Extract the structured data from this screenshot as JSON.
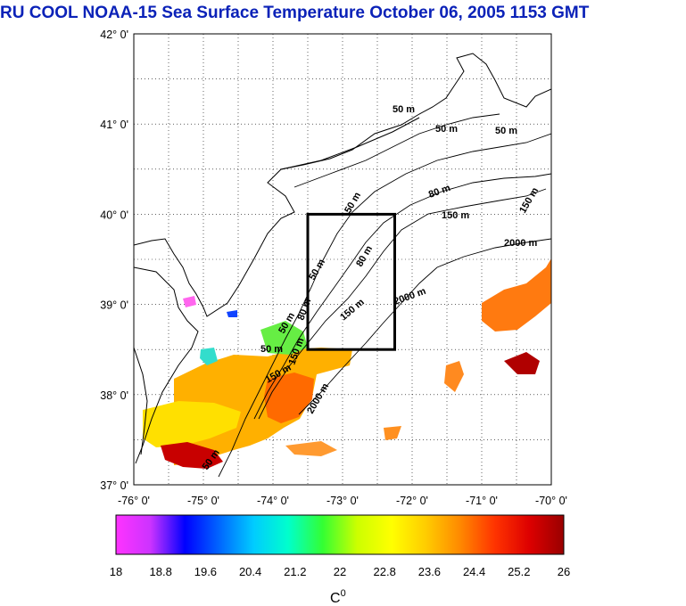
{
  "title": "RU COOL  NOAA-15 Sea Surface Temperature October 06, 2005 1153 GMT",
  "title_color": "#0b22b8",
  "map": {
    "lat_labels": [
      "42° 0'",
      "41° 0'",
      "40° 0'",
      "39° 0'",
      "38° 0'",
      "37° 0'"
    ],
    "lon_labels": [
      "-76° 0'",
      "-75° 0'",
      "-74° 0'",
      "-73° 0'",
      "-72° 0'",
      "-71° 0'",
      "-70° 0'"
    ],
    "lat_range": [
      37,
      42
    ],
    "lon_range": [
      -76,
      -70
    ],
    "grid": "dotted",
    "study_box": {
      "lon": [
        -73.5,
        -72.25
      ],
      "lat": [
        38.5,
        40.0
      ]
    },
    "contour_labels": [
      "50 m",
      "50 m",
      "50 m",
      "50 m",
      "50 m",
      "50 m",
      "50 m",
      "50 m",
      "80 m",
      "80 m",
      "80 m",
      "150 m",
      "150 m",
      "150 m",
      "150 m",
      "150 m",
      "2000 m",
      "2000 m",
      "2000 m"
    ]
  },
  "colorbar": {
    "tick_labels": [
      "18",
      "18.8",
      "19.6",
      "20.4",
      "21.2",
      "22",
      "22.8",
      "23.6",
      "24.4",
      "25.2",
      "26"
    ],
    "range": [
      18,
      26
    ],
    "unit_label": "C",
    "unit_superscript": "0",
    "colors": [
      "#ff33ff",
      "#cc33ff",
      "#0000ff",
      "#0066ff",
      "#00ccff",
      "#00ffcc",
      "#33ff33",
      "#ccff00",
      "#ffff00",
      "#ffcc00",
      "#ff8800",
      "#ff3300",
      "#dd0000",
      "#990000"
    ]
  }
}
